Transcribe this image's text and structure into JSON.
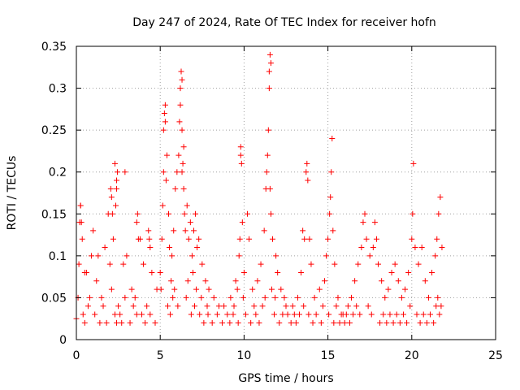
{
  "chart_data": {
    "type": "scatter",
    "title": "Day 247 of 2024, Rate Of TEC Index for receiver hofn",
    "xlabel": "GPS time / hours",
    "ylabel": "ROTI / TECUs",
    "xlim": [
      0,
      25
    ],
    "ylim": [
      0,
      0.35
    ],
    "xticks": [
      "0",
      "5",
      "10",
      "15",
      "20",
      "25"
    ],
    "yticks": [
      "0",
      "0.05",
      "0.1",
      "0.15",
      "0.2",
      "0.25",
      "0.3",
      "0.35"
    ],
    "grid": true,
    "marker": "+",
    "color": "#ff0000",
    "series": [
      {
        "points": [
          [
            0.0,
            0.025
          ],
          [
            0.1,
            0.05
          ],
          [
            0.15,
            0.09
          ],
          [
            0.2,
            0.14
          ],
          [
            0.25,
            0.16
          ],
          [
            0.35,
            0.12
          ],
          [
            0.5,
            0.08
          ],
          [
            0.7,
            0.04
          ],
          [
            0.9,
            0.1
          ],
          [
            1.0,
            0.13
          ],
          [
            1.2,
            0.07
          ],
          [
            1.5,
            0.05
          ],
          [
            1.7,
            0.11
          ],
          [
            1.9,
            0.15
          ],
          [
            2.0,
            0.09
          ],
          [
            2.1,
            0.06
          ],
          [
            2.2,
            0.12
          ],
          [
            2.3,
            0.03
          ],
          [
            2.5,
            0.04
          ],
          [
            2.8,
            0.09
          ],
          [
            3.0,
            0.1
          ],
          [
            3.3,
            0.06
          ],
          [
            3.5,
            0.05
          ],
          [
            3.8,
            0.12
          ],
          [
            4.0,
            0.09
          ],
          [
            4.2,
            0.04
          ],
          [
            4.5,
            0.08
          ],
          [
            4.8,
            0.06
          ],
          [
            0.4,
            0.03
          ],
          [
            0.8,
            0.05
          ],
          [
            1.4,
            0.02
          ],
          [
            1.6,
            0.04
          ],
          [
            2.4,
            0.02
          ],
          [
            2.6,
            0.03
          ],
          [
            2.9,
            0.05
          ],
          [
            3.2,
            0.02
          ],
          [
            3.6,
            0.03
          ],
          [
            4.1,
            0.02
          ],
          [
            4.4,
            0.03
          ],
          [
            4.7,
            0.02
          ],
          [
            0.5,
            0.02
          ],
          [
            1.1,
            0.03
          ],
          [
            1.8,
            0.02
          ],
          [
            2.7,
            0.02
          ],
          [
            3.4,
            0.04
          ],
          [
            3.9,
            0.03
          ],
          [
            0.6,
            0.08
          ],
          [
            1.3,
            0.1
          ],
          [
            2.9,
            0.2
          ],
          [
            2.1,
            0.17
          ],
          [
            2.15,
            0.15
          ],
          [
            2.05,
            0.18
          ],
          [
            2.3,
            0.21
          ],
          [
            2.45,
            0.2
          ],
          [
            2.4,
            0.19
          ],
          [
            2.35,
            0.16
          ],
          [
            2.4,
            0.18
          ],
          [
            3.6,
            0.14
          ],
          [
            3.65,
            0.15
          ],
          [
            3.7,
            0.12
          ],
          [
            4.3,
            0.13
          ],
          [
            4.4,
            0.11
          ],
          [
            4.35,
            0.12
          ],
          [
            0.25,
            0.16
          ],
          [
            0.3,
            0.14
          ],
          [
            5.0,
            0.08
          ],
          [
            5.1,
            0.12
          ],
          [
            5.2,
            0.2
          ],
          [
            5.2,
            0.25
          ],
          [
            5.3,
            0.28
          ],
          [
            5.25,
            0.27
          ],
          [
            5.3,
            0.26
          ],
          [
            5.4,
            0.22
          ],
          [
            5.35,
            0.19
          ],
          [
            5.5,
            0.15
          ],
          [
            5.7,
            0.1
          ],
          [
            5.8,
            0.13
          ],
          [
            5.9,
            0.18
          ],
          [
            6.0,
            0.2
          ],
          [
            6.1,
            0.22
          ],
          [
            6.2,
            0.3
          ],
          [
            6.25,
            0.32
          ],
          [
            6.3,
            0.31
          ],
          [
            6.2,
            0.28
          ],
          [
            6.15,
            0.26
          ],
          [
            6.3,
            0.25
          ],
          [
            6.4,
            0.23
          ],
          [
            6.35,
            0.21
          ],
          [
            6.3,
            0.2
          ],
          [
            6.4,
            0.18
          ],
          [
            6.45,
            0.15
          ],
          [
            6.5,
            0.13
          ],
          [
            6.6,
            0.16
          ],
          [
            6.7,
            0.12
          ],
          [
            6.8,
            0.14
          ],
          [
            6.9,
            0.1
          ],
          [
            7.0,
            0.13
          ],
          [
            7.1,
            0.15
          ],
          [
            7.2,
            0.11
          ],
          [
            7.3,
            0.12
          ],
          [
            7.5,
            0.09
          ],
          [
            7.7,
            0.07
          ],
          [
            7.9,
            0.06
          ],
          [
            8.2,
            0.05
          ],
          [
            8.5,
            0.04
          ],
          [
            8.8,
            0.04
          ],
          [
            5.05,
            0.06
          ],
          [
            5.45,
            0.04
          ],
          [
            5.6,
            0.03
          ],
          [
            5.75,
            0.05
          ],
          [
            6.05,
            0.04
          ],
          [
            6.55,
            0.05
          ],
          [
            6.85,
            0.03
          ],
          [
            7.05,
            0.04
          ],
          [
            7.35,
            0.03
          ],
          [
            7.6,
            0.02
          ],
          [
            7.85,
            0.03
          ],
          [
            8.1,
            0.02
          ],
          [
            8.4,
            0.03
          ],
          [
            8.7,
            0.02
          ],
          [
            5.15,
            0.16
          ],
          [
            5.55,
            0.11
          ],
          [
            5.65,
            0.07
          ],
          [
            5.85,
            0.06
          ],
          [
            6.65,
            0.07
          ],
          [
            6.95,
            0.08
          ],
          [
            7.15,
            0.06
          ],
          [
            7.45,
            0.05
          ],
          [
            7.8,
            0.04
          ],
          [
            9.0,
            0.03
          ],
          [
            9.2,
            0.05
          ],
          [
            9.4,
            0.04
          ],
          [
            9.5,
            0.07
          ],
          [
            9.6,
            0.06
          ],
          [
            9.7,
            0.1
          ],
          [
            9.75,
            0.12
          ],
          [
            9.8,
            0.22
          ],
          [
            9.8,
            0.23
          ],
          [
            9.85,
            0.21
          ],
          [
            9.9,
            0.14
          ],
          [
            10.0,
            0.08
          ],
          [
            10.2,
            0.15
          ],
          [
            10.3,
            0.12
          ],
          [
            10.5,
            0.06
          ],
          [
            10.8,
            0.07
          ],
          [
            11.0,
            0.09
          ],
          [
            11.2,
            0.13
          ],
          [
            11.3,
            0.18
          ],
          [
            11.35,
            0.2
          ],
          [
            11.4,
            0.22
          ],
          [
            11.45,
            0.25
          ],
          [
            11.5,
            0.3
          ],
          [
            11.5,
            0.32
          ],
          [
            11.55,
            0.34
          ],
          [
            11.6,
            0.33
          ],
          [
            11.55,
            0.18
          ],
          [
            11.6,
            0.15
          ],
          [
            11.7,
            0.12
          ],
          [
            11.9,
            0.1
          ],
          [
            12.0,
            0.08
          ],
          [
            12.2,
            0.06
          ],
          [
            12.4,
            0.05
          ],
          [
            9.15,
            0.02
          ],
          [
            9.35,
            0.03
          ],
          [
            9.65,
            0.02
          ],
          [
            10.1,
            0.03
          ],
          [
            10.4,
            0.02
          ],
          [
            10.7,
            0.03
          ],
          [
            10.9,
            0.02
          ],
          [
            11.1,
            0.04
          ],
          [
            11.8,
            0.03
          ],
          [
            12.1,
            0.02
          ],
          [
            12.3,
            0.03
          ],
          [
            12.5,
            0.04
          ],
          [
            9.95,
            0.05
          ],
          [
            10.6,
            0.04
          ],
          [
            11.25,
            0.05
          ],
          [
            11.65,
            0.06
          ],
          [
            11.85,
            0.05
          ],
          [
            12.6,
            0.03
          ],
          [
            12.8,
            0.02
          ],
          [
            13.0,
            0.03
          ],
          [
            13.2,
            0.05
          ],
          [
            13.4,
            0.08
          ],
          [
            13.5,
            0.13
          ],
          [
            13.6,
            0.12
          ],
          [
            13.7,
            0.2
          ],
          [
            13.75,
            0.21
          ],
          [
            13.8,
            0.19
          ],
          [
            13.9,
            0.12
          ],
          [
            14.0,
            0.09
          ],
          [
            14.2,
            0.05
          ],
          [
            14.5,
            0.06
          ],
          [
            14.8,
            0.07
          ],
          [
            14.9,
            0.1
          ],
          [
            15.0,
            0.12
          ],
          [
            15.1,
            0.15
          ],
          [
            15.15,
            0.17
          ],
          [
            15.2,
            0.2
          ],
          [
            15.25,
            0.24
          ],
          [
            15.3,
            0.13
          ],
          [
            15.4,
            0.09
          ],
          [
            15.6,
            0.05
          ],
          [
            15.8,
            0.03
          ],
          [
            16.0,
            0.02
          ],
          [
            12.9,
            0.04
          ],
          [
            13.1,
            0.02
          ],
          [
            13.3,
            0.03
          ],
          [
            13.55,
            0.04
          ],
          [
            13.85,
            0.03
          ],
          [
            14.1,
            0.02
          ],
          [
            14.3,
            0.03
          ],
          [
            14.6,
            0.02
          ],
          [
            14.7,
            0.04
          ],
          [
            15.05,
            0.03
          ],
          [
            15.35,
            0.02
          ],
          [
            15.5,
            0.04
          ],
          [
            15.7,
            0.02
          ],
          [
            15.9,
            0.03
          ],
          [
            16.2,
            0.04
          ],
          [
            16.4,
            0.05
          ],
          [
            16.6,
            0.07
          ],
          [
            16.8,
            0.09
          ],
          [
            17.0,
            0.11
          ],
          [
            17.1,
            0.14
          ],
          [
            17.2,
            0.15
          ],
          [
            17.3,
            0.12
          ],
          [
            17.5,
            0.1
          ],
          [
            17.7,
            0.11
          ],
          [
            17.8,
            0.14
          ],
          [
            17.9,
            0.12
          ],
          [
            18.0,
            0.09
          ],
          [
            18.2,
            0.07
          ],
          [
            18.4,
            0.05
          ],
          [
            18.6,
            0.06
          ],
          [
            18.8,
            0.08
          ],
          [
            19.0,
            0.09
          ],
          [
            19.2,
            0.07
          ],
          [
            19.4,
            0.05
          ],
          [
            19.6,
            0.06
          ],
          [
            19.8,
            0.08
          ],
          [
            20.0,
            0.12
          ],
          [
            20.05,
            0.15
          ],
          [
            20.1,
            0.21
          ],
          [
            20.2,
            0.11
          ],
          [
            20.4,
            0.09
          ],
          [
            20.6,
            0.11
          ],
          [
            20.8,
            0.07
          ],
          [
            21.0,
            0.05
          ],
          [
            21.2,
            0.08
          ],
          [
            21.4,
            0.1
          ],
          [
            21.5,
            0.12
          ],
          [
            21.6,
            0.15
          ],
          [
            21.7,
            0.17
          ],
          [
            21.8,
            0.11
          ],
          [
            16.1,
            0.03
          ],
          [
            16.3,
            0.02
          ],
          [
            16.5,
            0.03
          ],
          [
            16.7,
            0.04
          ],
          [
            16.9,
            0.03
          ],
          [
            17.4,
            0.04
          ],
          [
            17.6,
            0.03
          ],
          [
            18.1,
            0.02
          ],
          [
            18.3,
            0.03
          ],
          [
            18.5,
            0.02
          ],
          [
            18.7,
            0.03
          ],
          [
            18.9,
            0.02
          ],
          [
            19.1,
            0.03
          ],
          [
            19.3,
            0.02
          ],
          [
            19.5,
            0.03
          ],
          [
            19.7,
            0.02
          ],
          [
            19.9,
            0.04
          ],
          [
            20.3,
            0.03
          ],
          [
            20.5,
            0.02
          ],
          [
            20.7,
            0.03
          ],
          [
            20.9,
            0.02
          ],
          [
            21.1,
            0.03
          ],
          [
            21.3,
            0.02
          ],
          [
            21.45,
            0.04
          ],
          [
            21.55,
            0.05
          ],
          [
            21.65,
            0.03
          ],
          [
            21.75,
            0.04
          ]
        ]
      }
    ]
  }
}
